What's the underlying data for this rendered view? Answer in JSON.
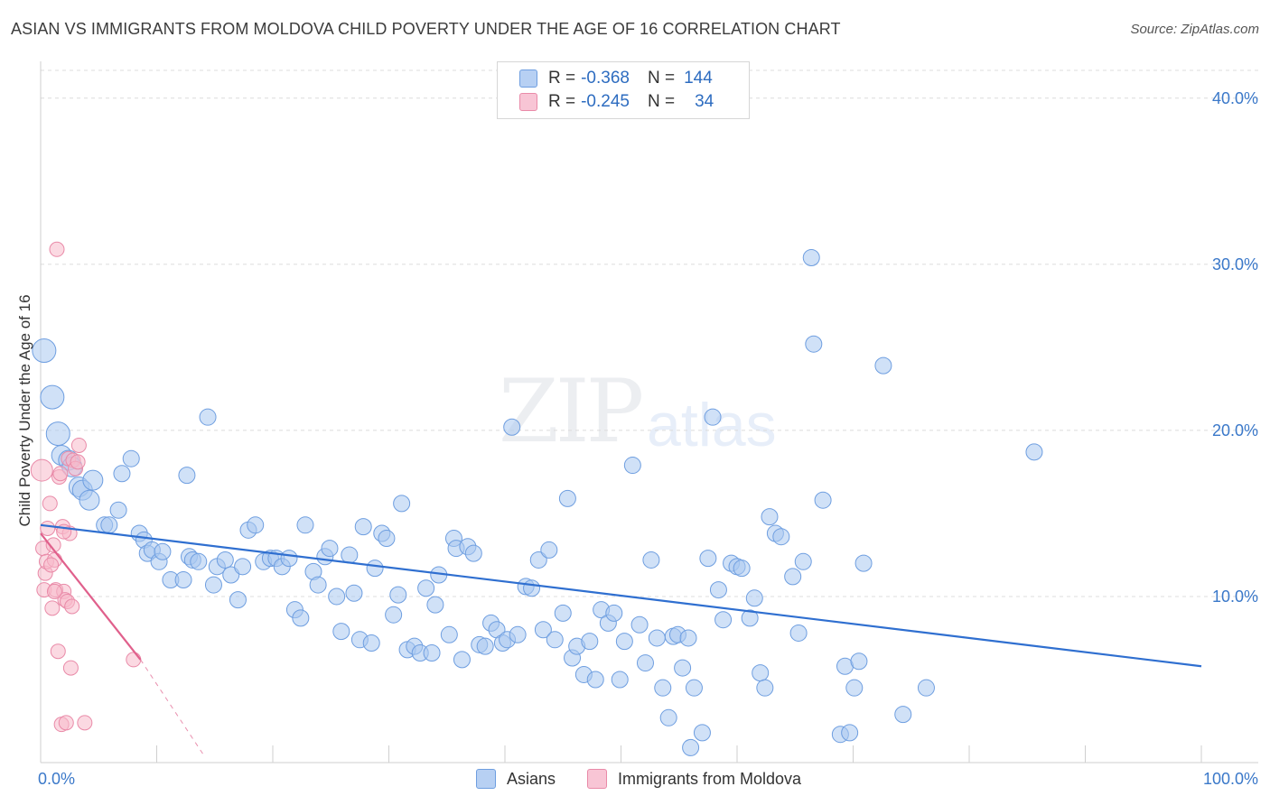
{
  "header": {
    "title": "ASIAN VS IMMIGRANTS FROM MOLDOVA CHILD POVERTY UNDER THE AGE OF 16 CORRELATION CHART",
    "source": "Source: ZipAtlas.com"
  },
  "watermark": {
    "zip": "ZIP",
    "atlas": "atlas"
  },
  "legend": {
    "rows": [
      {
        "r_label": "R =",
        "r_value": "-0.368",
        "n_label": "N =",
        "n_value": "144"
      },
      {
        "r_label": "R =",
        "r_value": "-0.245",
        "n_label": "N =",
        "n_value": "34"
      }
    ]
  },
  "colors": {
    "asians_fill": "#a9c8f0",
    "asians_stroke": "#6e9ee0",
    "asians_line": "#2f6fd0",
    "moldova_fill": "#f7b9cb",
    "moldova_stroke": "#e98aa8",
    "moldova_line": "#e0608c",
    "tick_text": "#3a78c9",
    "grid": "#dcdcdc"
  },
  "chart_data": {
    "type": "scatter",
    "title": "ASIAN VS IMMIGRANTS FROM MOLDOVA CHILD POVERTY UNDER THE AGE OF 16 CORRELATION CHART",
    "xlabel": "",
    "ylabel": "Child Poverty Under the Age of 16",
    "xlim": [
      0,
      100
    ],
    "ylim": [
      0,
      42
    ],
    "x_tick_labels": [
      "0.0%",
      "100.0%"
    ],
    "y_ticks": [
      10,
      20,
      30,
      40
    ],
    "y_tick_labels": [
      "10.0%",
      "20.0%",
      "30.0%",
      "40.0%"
    ],
    "series": [
      {
        "name": "Asians",
        "trend": {
          "x": [
            0,
            100
          ],
          "y": [
            14.3,
            5.8
          ]
        },
        "points": [
          [
            0.3,
            24.8
          ],
          [
            1.0,
            22.0
          ],
          [
            1.5,
            19.8
          ],
          [
            1.8,
            18.5
          ],
          [
            2.4,
            18.2
          ],
          [
            2.7,
            17.8
          ],
          [
            3.3,
            16.6
          ],
          [
            3.6,
            16.4
          ],
          [
            4.2,
            15.8
          ],
          [
            4.5,
            17.0
          ],
          [
            5.5,
            14.3
          ],
          [
            5.9,
            14.3
          ],
          [
            6.7,
            15.2
          ],
          [
            7.0,
            17.4
          ],
          [
            7.8,
            18.3
          ],
          [
            8.5,
            13.8
          ],
          [
            8.9,
            13.4
          ],
          [
            9.2,
            12.6
          ],
          [
            9.6,
            12.8
          ],
          [
            10.2,
            12.1
          ],
          [
            10.5,
            12.7
          ],
          [
            11.2,
            11.0
          ],
          [
            12.3,
            11.0
          ],
          [
            12.6,
            17.3
          ],
          [
            12.8,
            12.4
          ],
          [
            13.1,
            12.2
          ],
          [
            13.6,
            12.1
          ],
          [
            14.4,
            20.8
          ],
          [
            14.9,
            10.7
          ],
          [
            15.2,
            11.8
          ],
          [
            15.9,
            12.2
          ],
          [
            16.4,
            11.3
          ],
          [
            17.0,
            9.8
          ],
          [
            17.4,
            11.8
          ],
          [
            17.9,
            14.0
          ],
          [
            18.5,
            14.3
          ],
          [
            19.2,
            12.1
          ],
          [
            19.8,
            12.3
          ],
          [
            20.3,
            12.3
          ],
          [
            20.8,
            11.8
          ],
          [
            21.4,
            12.3
          ],
          [
            21.9,
            9.2
          ],
          [
            22.4,
            8.7
          ],
          [
            22.8,
            14.3
          ],
          [
            23.5,
            11.5
          ],
          [
            23.9,
            10.7
          ],
          [
            24.5,
            12.4
          ],
          [
            24.9,
            12.9
          ],
          [
            25.5,
            10.0
          ],
          [
            25.9,
            7.9
          ],
          [
            26.6,
            12.5
          ],
          [
            27.0,
            10.2
          ],
          [
            27.5,
            7.4
          ],
          [
            27.8,
            14.2
          ],
          [
            28.5,
            7.2
          ],
          [
            28.8,
            11.7
          ],
          [
            29.4,
            13.8
          ],
          [
            29.8,
            13.5
          ],
          [
            30.4,
            8.9
          ],
          [
            30.8,
            10.1
          ],
          [
            31.1,
            15.6
          ],
          [
            31.6,
            6.8
          ],
          [
            32.2,
            7.0
          ],
          [
            32.7,
            6.6
          ],
          [
            33.2,
            10.5
          ],
          [
            33.7,
            6.6
          ],
          [
            34.0,
            9.5
          ],
          [
            34.3,
            11.3
          ],
          [
            35.2,
            7.7
          ],
          [
            35.6,
            13.5
          ],
          [
            35.8,
            12.9
          ],
          [
            36.3,
            6.2
          ],
          [
            36.8,
            13.0
          ],
          [
            37.3,
            12.6
          ],
          [
            37.8,
            7.1
          ],
          [
            38.3,
            7.0
          ],
          [
            38.8,
            8.4
          ],
          [
            39.3,
            8.0
          ],
          [
            39.8,
            7.2
          ],
          [
            40.2,
            7.4
          ],
          [
            40.6,
            20.2
          ],
          [
            41.1,
            7.7
          ],
          [
            41.8,
            10.6
          ],
          [
            42.3,
            10.5
          ],
          [
            42.9,
            12.2
          ],
          [
            43.3,
            8.0
          ],
          [
            43.8,
            12.8
          ],
          [
            44.3,
            7.4
          ],
          [
            45.0,
            9.0
          ],
          [
            45.4,
            15.9
          ],
          [
            45.8,
            6.3
          ],
          [
            46.2,
            7.0
          ],
          [
            46.8,
            5.3
          ],
          [
            47.3,
            7.3
          ],
          [
            47.8,
            5.0
          ],
          [
            48.3,
            9.2
          ],
          [
            48.9,
            8.4
          ],
          [
            49.4,
            9.0
          ],
          [
            49.9,
            5.0
          ],
          [
            50.3,
            7.3
          ],
          [
            51.0,
            17.9
          ],
          [
            51.6,
            8.3
          ],
          [
            52.1,
            6.0
          ],
          [
            52.6,
            12.2
          ],
          [
            53.1,
            7.5
          ],
          [
            53.6,
            4.5
          ],
          [
            54.1,
            2.7
          ],
          [
            54.5,
            7.6
          ],
          [
            54.9,
            7.7
          ],
          [
            55.3,
            5.7
          ],
          [
            55.8,
            7.5
          ],
          [
            56.3,
            4.5
          ],
          [
            57.0,
            1.8
          ],
          [
            57.5,
            12.3
          ],
          [
            57.9,
            20.8
          ],
          [
            58.4,
            10.4
          ],
          [
            58.8,
            8.6
          ],
          [
            59.5,
            12.0
          ],
          [
            60.0,
            11.8
          ],
          [
            60.4,
            11.7
          ],
          [
            61.1,
            8.7
          ],
          [
            61.5,
            9.9
          ],
          [
            62.0,
            5.4
          ],
          [
            62.4,
            4.5
          ],
          [
            62.8,
            14.8
          ],
          [
            63.3,
            13.8
          ],
          [
            63.8,
            13.6
          ],
          [
            64.8,
            11.2
          ],
          [
            65.3,
            7.8
          ],
          [
            65.7,
            12.1
          ],
          [
            66.4,
            30.4
          ],
          [
            66.6,
            25.2
          ],
          [
            67.4,
            15.8
          ],
          [
            68.9,
            1.7
          ],
          [
            69.3,
            5.8
          ],
          [
            69.7,
            1.8
          ],
          [
            70.1,
            4.5
          ],
          [
            70.5,
            6.1
          ],
          [
            70.9,
            12.0
          ],
          [
            72.6,
            23.9
          ],
          [
            74.3,
            2.9
          ],
          [
            76.3,
            4.5
          ],
          [
            85.6,
            18.7
          ],
          [
            56.0,
            0.9
          ]
        ]
      },
      {
        "name": "Immigrants from Moldova",
        "trend": {
          "x": [
            0,
            8.6
          ],
          "y": [
            13.8,
            6.2
          ]
        },
        "trend_extension": {
          "x": [
            8.6,
            14.0
          ],
          "y": [
            6.2,
            0.5
          ]
        },
        "points": [
          [
            0.1,
            17.6
          ],
          [
            0.2,
            12.9
          ],
          [
            0.3,
            10.4
          ],
          [
            0.4,
            11.4
          ],
          [
            0.5,
            12.1
          ],
          [
            0.6,
            14.1
          ],
          [
            0.8,
            15.6
          ],
          [
            1.0,
            9.3
          ],
          [
            1.1,
            13.1
          ],
          [
            1.2,
            12.2
          ],
          [
            1.3,
            10.4
          ],
          [
            1.4,
            30.9
          ],
          [
            1.5,
            6.7
          ],
          [
            1.6,
            17.2
          ],
          [
            1.7,
            17.4
          ],
          [
            1.8,
            2.3
          ],
          [
            1.9,
            14.2
          ],
          [
            2.0,
            10.3
          ],
          [
            2.1,
            9.8
          ],
          [
            2.2,
            2.4
          ],
          [
            2.3,
            9.7
          ],
          [
            2.4,
            18.3
          ],
          [
            2.5,
            13.8
          ],
          [
            2.6,
            5.7
          ],
          [
            2.7,
            9.4
          ],
          [
            2.8,
            18.2
          ],
          [
            3.0,
            17.7
          ],
          [
            3.2,
            18.1
          ],
          [
            3.3,
            19.1
          ],
          [
            3.8,
            2.4
          ],
          [
            8.0,
            6.2
          ],
          [
            0.9,
            11.9
          ],
          [
            1.2,
            10.3
          ],
          [
            2.0,
            13.9
          ]
        ]
      }
    ]
  },
  "bottom_legend": {
    "asians": "Asians",
    "moldova": "Immigrants from Moldova"
  }
}
